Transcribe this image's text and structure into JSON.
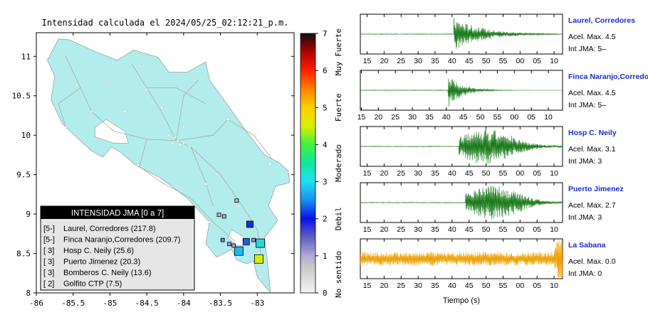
{
  "map": {
    "title": "Intensidad calculada el 2024/05/25_02:12:21_p.m.",
    "x_ticks": [
      "-86",
      "-85.5",
      "-85",
      "-84.5",
      "-84",
      "-83.5",
      "-83"
    ],
    "y_ticks": [
      "11",
      "10.5",
      "10",
      "9.5",
      "9",
      "8.5",
      "8"
    ],
    "xlim": [
      -86,
      -82.5
    ],
    "ylim": [
      8,
      11.3
    ],
    "colors": {
      "land": "#b2ecec",
      "ocean": "#ffffff",
      "frame": "#000000"
    },
    "stations": [
      {
        "lon": -83.1,
        "lat": 8.87,
        "intensity": 2,
        "color": "#1030e0"
      },
      {
        "lon": -83.15,
        "lat": 8.65,
        "intensity": 2,
        "color": "#1860e0"
      },
      {
        "lon": -83.25,
        "lat": 8.53,
        "intensity": 3,
        "color": "#20b8f0"
      },
      {
        "lon": -82.96,
        "lat": 8.63,
        "intensity": 3,
        "color": "#28d8d0"
      },
      {
        "lon": -82.98,
        "lat": 8.43,
        "intensity": 4,
        "color": "#d8f000"
      },
      {
        "lon": -83.47,
        "lat": 8.67,
        "intensity": 1,
        "color": "#8878c8"
      },
      {
        "lon": -83.38,
        "lat": 8.62,
        "intensity": 1,
        "color": "#a090d0"
      },
      {
        "lon": -83.45,
        "lat": 8.97,
        "intensity": 1,
        "color": "#b0a8d8"
      },
      {
        "lon": -83.52,
        "lat": 8.99,
        "intensity": 1,
        "color": "#b8b0e0"
      },
      {
        "lon": -83.28,
        "lat": 9.17,
        "intensity": 1,
        "color": "#c0b8e0"
      },
      {
        "lon": -83.05,
        "lat": 8.67,
        "intensity": 1,
        "color": "#9888d0"
      },
      {
        "lon": -83.32,
        "lat": 8.6,
        "intensity": 1,
        "color": "#a898d8"
      }
    ]
  },
  "legend": {
    "title": "INTENSIDAD JMA [0 a 7]",
    "items": [
      {
        "level": "[5-]",
        "name": "Laurel, Corredores (217.8)"
      },
      {
        "level": "[5-]",
        "name": "Finca Naranjo,Corredores (209.7)"
      },
      {
        "level": "[ 3]",
        "name": "Hosp C. Neily (25.6)"
      },
      {
        "level": "[ 3]",
        "name": "Puerto Jimenez (20.3)"
      },
      {
        "level": "[ 3]",
        "name": "Bomberos C. Neily (13.6)"
      },
      {
        "level": "[ 2]",
        "name": "Golfito CTP (7.5)"
      }
    ]
  },
  "colorbar": {
    "ticks": [
      "7",
      "6",
      "5",
      "4",
      "3",
      "2",
      "1",
      "0"
    ],
    "labels": [
      "Muy Fuerte",
      "Fuerte",
      "Moderado",
      "Debil",
      "No sentido"
    ],
    "stops": [
      {
        "v": 0,
        "c": "#f4f4f4"
      },
      {
        "v": 0.7,
        "c": "#c8c8c8"
      },
      {
        "v": 1.0,
        "c": "#b0a8d8"
      },
      {
        "v": 1.5,
        "c": "#6060c0"
      },
      {
        "v": 2.0,
        "c": "#0a10e8"
      },
      {
        "v": 2.5,
        "c": "#1890f0"
      },
      {
        "v": 3.0,
        "c": "#20e0f0"
      },
      {
        "v": 3.5,
        "c": "#10e8a0"
      },
      {
        "v": 4.0,
        "c": "#40f040"
      },
      {
        "v": 4.5,
        "c": "#d8f000"
      },
      {
        "v": 5.0,
        "c": "#ffd000"
      },
      {
        "v": 5.5,
        "c": "#ff8000"
      },
      {
        "v": 6.0,
        "c": "#ff2000"
      },
      {
        "v": 6.5,
        "c": "#b00000"
      },
      {
        "v": 7.0,
        "c": "#101010"
      }
    ]
  },
  "chart_data": [
    {
      "type": "line",
      "xlabel": "Tiempo (s)",
      "x_ticks": [
        "15",
        "20",
        "25",
        "30",
        "35",
        "40",
        "45",
        "50",
        "55",
        "00",
        "05",
        "10"
      ],
      "series": [
        {
          "name": "Laurel, Corredores",
          "acel_label": "Acel. Max. 4.5",
          "int_label": "Int JMA: 5–",
          "color": "#1a7a1a",
          "onset": 40.5,
          "amplitude": 0.95,
          "decay": 0.12,
          "noise": 0.02
        },
        {
          "name": "Finca Naranjo,Corredores",
          "acel_label": "Acel. Max. 4.5",
          "int_label": "Int JMA: 5–",
          "color": "#1a7a1a",
          "onset": 38.8,
          "amplitude": 1.0,
          "decay": 0.25,
          "noise": 0.02
        },
        {
          "name": "Hosp C. Neily",
          "acel_label": "Acel. Max. 3.1",
          "int_label": "Int JMA: 3",
          "color": "#1a7a1a",
          "onset": 42,
          "amplitude": 0.95,
          "decay": 0.07,
          "noise": 0.02
        },
        {
          "name": "Puerto Jimenez",
          "acel_label": "Acel. Max. 2.7",
          "int_label": "Int JMA: 3",
          "color": "#1a7a1a",
          "onset": 44,
          "amplitude": 0.9,
          "decay": 0.045,
          "noise": 0.02
        },
        {
          "name": "La Sabana",
          "acel_label": "Acel. Max. 0.0",
          "int_label": "Int JMA: 0",
          "color": "#f0a000",
          "onset": null,
          "amplitude": 0.25,
          "decay": 0,
          "noise": 0.25
        }
      ]
    }
  ]
}
